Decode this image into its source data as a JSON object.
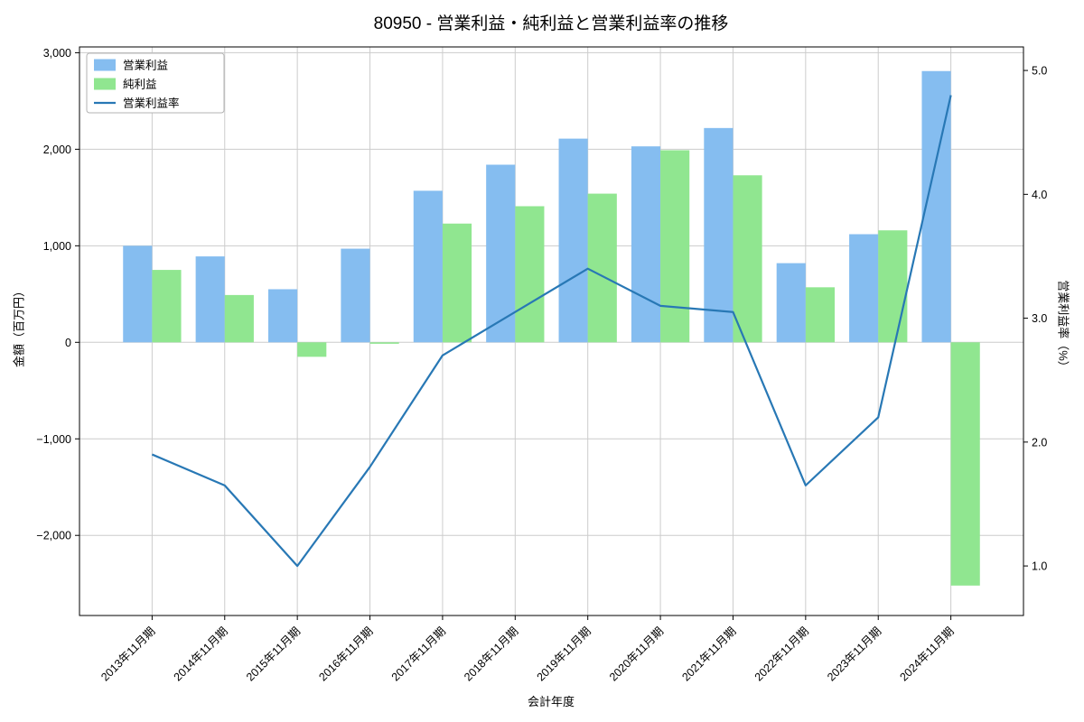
{
  "chart_data": {
    "type": "bar+line",
    "title": "80950 - 営業利益・純利益と営業利益率の推移",
    "xlabel": "会計年度",
    "ylabel_left": "金額（百万円）",
    "ylabel_right": "営業利益率（%）",
    "categories": [
      "2013年11月期",
      "2014年11月期",
      "2015年11月期",
      "2016年11月期",
      "2017年11月期",
      "2018年11月期",
      "2019年11月期",
      "2020年11月期",
      "2021年11月期",
      "2022年11月期",
      "2023年11月期",
      "2024年11月期"
    ],
    "series": [
      {
        "name": "営業利益",
        "type": "bar",
        "axis": "left",
        "color": "#85bdf0",
        "values": [
          1000,
          890,
          550,
          970,
          1570,
          1840,
          2110,
          2030,
          2220,
          820,
          1120,
          2810
        ]
      },
      {
        "name": "純利益",
        "type": "bar",
        "axis": "left",
        "color": "#90e690",
        "values": [
          750,
          490,
          -150,
          -15,
          1230,
          1410,
          1540,
          1990,
          1730,
          570,
          1160,
          -2520
        ]
      },
      {
        "name": "営業利益率",
        "type": "line",
        "axis": "right",
        "color": "#2878b5",
        "values": [
          1.9,
          1.65,
          1.0,
          1.8,
          2.7,
          3.05,
          3.4,
          3.1,
          3.05,
          1.65,
          2.2,
          4.8
        ]
      }
    ],
    "left_axis": {
      "lim": [
        -2830,
        3060
      ],
      "ticks": [
        {
          "v": -2000,
          "label": "−2,000"
        },
        {
          "v": -1000,
          "label": "−1,000"
        },
        {
          "v": 0,
          "label": "0"
        },
        {
          "v": 1000,
          "label": "1,000"
        },
        {
          "v": 2000,
          "label": "2,000"
        },
        {
          "v": 3000,
          "label": "3,000"
        }
      ]
    },
    "right_axis": {
      "lim": [
        0.6,
        5.19
      ],
      "ticks": [
        {
          "v": 1.0,
          "label": "1.0"
        },
        {
          "v": 2.0,
          "label": "2.0"
        },
        {
          "v": 3.0,
          "label": "3.0"
        },
        {
          "v": 4.0,
          "label": "4.0"
        },
        {
          "v": 5.0,
          "label": "5.0"
        }
      ]
    },
    "legend": {
      "position": "upper-left",
      "labels": [
        "営業利益",
        "純利益",
        "営業利益率"
      ]
    },
    "grid": true,
    "colors": {
      "grid": "#cccccc",
      "frame": "#000000",
      "background": "#ffffff"
    }
  }
}
